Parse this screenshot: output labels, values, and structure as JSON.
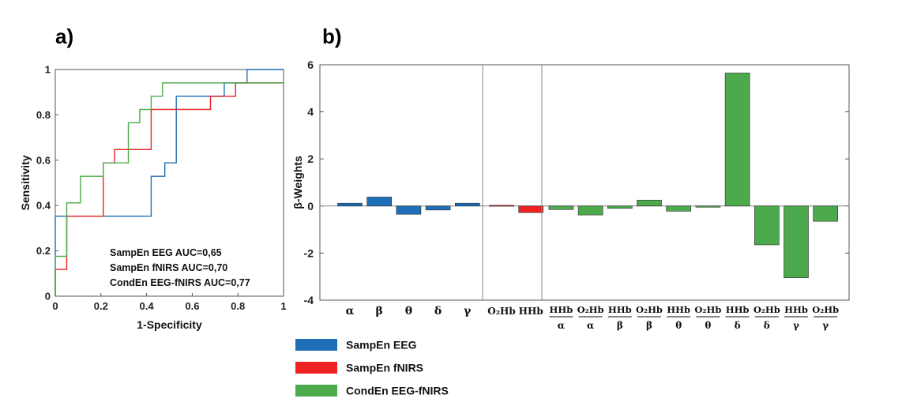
{
  "panels": {
    "a": "a)",
    "b": "b)"
  },
  "colors": {
    "eeg": "#1f6fb8",
    "fnirs": "#ee2222",
    "cond": "#4caa4c"
  },
  "chart_data": [
    {
      "type": "line",
      "panel": "a)",
      "xlabel": "1-Specificity",
      "ylabel": "Sensitivity",
      "xlim": [
        0,
        1
      ],
      "ylim": [
        0,
        1
      ],
      "xticks": [
        "0",
        "0.2",
        "0.4",
        "0.6",
        "0.8",
        "1"
      ],
      "yticks": [
        "0",
        "0.2",
        "0.4",
        "0.6",
        "0.8",
        "1"
      ],
      "annotations": [
        "SampEn EEG AUC=0,65",
        "SampEn fNIRS AUC=0,70",
        "CondEn EEG-fNIRS AUC=0,77"
      ],
      "series": [
        {
          "key": "eeg",
          "name": "SampEn EEG",
          "x": [
            0,
            0,
            0.42,
            0.42,
            0.48,
            0.48,
            0.53,
            0.53,
            0.74,
            0.74,
            0.84,
            0.84,
            1
          ],
          "y": [
            0,
            0.353,
            0.353,
            0.529,
            0.529,
            0.588,
            0.588,
            0.882,
            0.882,
            0.941,
            0.941,
            1,
            1
          ]
        },
        {
          "key": "fnirs",
          "name": "SampEn fNIRS",
          "x": [
            0,
            0,
            0.05,
            0.05,
            0.21,
            0.21,
            0.26,
            0.26,
            0.42,
            0.42,
            0.68,
            0.68,
            0.79,
            0.79,
            1
          ],
          "y": [
            0,
            0.118,
            0.118,
            0.353,
            0.353,
            0.588,
            0.588,
            0.647,
            0.647,
            0.824,
            0.824,
            0.882,
            0.882,
            0.941,
            0.941
          ]
        },
        {
          "key": "cond",
          "name": "CondEn EEG-fNIRS",
          "x": [
            0,
            0,
            0.05,
            0.05,
            0.11,
            0.11,
            0.21,
            0.21,
            0.32,
            0.32,
            0.37,
            0.37,
            0.42,
            0.42,
            0.47,
            0.47,
            1
          ],
          "y": [
            0,
            0.176,
            0.176,
            0.412,
            0.412,
            0.529,
            0.529,
            0.588,
            0.588,
            0.765,
            0.765,
            0.824,
            0.824,
            0.882,
            0.882,
            0.941,
            0.941
          ]
        }
      ]
    },
    {
      "type": "bar",
      "panel": "b)",
      "ylabel": "β-Weights",
      "ylim": [
        -4,
        6
      ],
      "yticks": [
        "-4",
        "-2",
        "0",
        "2",
        "4",
        "6"
      ],
      "groups": [
        {
          "key": "eeg",
          "name": "SampEn EEG",
          "categories": [
            {
              "top": "α"
            },
            {
              "top": "β"
            },
            {
              "top": "θ"
            },
            {
              "top": "δ"
            },
            {
              "top": "γ"
            }
          ],
          "values": [
            0.12,
            0.38,
            -0.35,
            -0.17,
            0.12
          ]
        },
        {
          "key": "fnirs",
          "name": "SampEn fNIRS",
          "categories": [
            {
              "top": "O₂Hb"
            },
            {
              "top": "HHb"
            }
          ],
          "values": [
            0.03,
            -0.28
          ]
        },
        {
          "key": "cond",
          "name": "CondEn EEG-fNIRS",
          "categories": [
            {
              "top": "HHb",
              "bottom": "α"
            },
            {
              "top": "O₂Hb",
              "bottom": "α"
            },
            {
              "top": "HHb",
              "bottom": "β"
            },
            {
              "top": "O₂Hb",
              "bottom": "β"
            },
            {
              "top": "HHb",
              "bottom": "θ"
            },
            {
              "top": "O₂Hb",
              "bottom": "θ"
            },
            {
              "top": "HHb",
              "bottom": "δ"
            },
            {
              "top": "O₂Hb",
              "bottom": "δ"
            },
            {
              "top": "HHb",
              "bottom": "γ"
            },
            {
              "top": "O₂Hb",
              "bottom": "γ"
            }
          ],
          "values": [
            -0.15,
            -0.38,
            -0.1,
            0.25,
            -0.22,
            -0.05,
            5.65,
            -1.65,
            -3.05,
            -0.65
          ]
        }
      ],
      "legend": [
        {
          "key": "eeg",
          "label": "SampEn EEG"
        },
        {
          "key": "fnirs",
          "label": "SampEn fNIRS"
        },
        {
          "key": "cond",
          "label": "CondEn EEG-fNIRS"
        }
      ],
      "legend_position": "bottom-left"
    }
  ]
}
